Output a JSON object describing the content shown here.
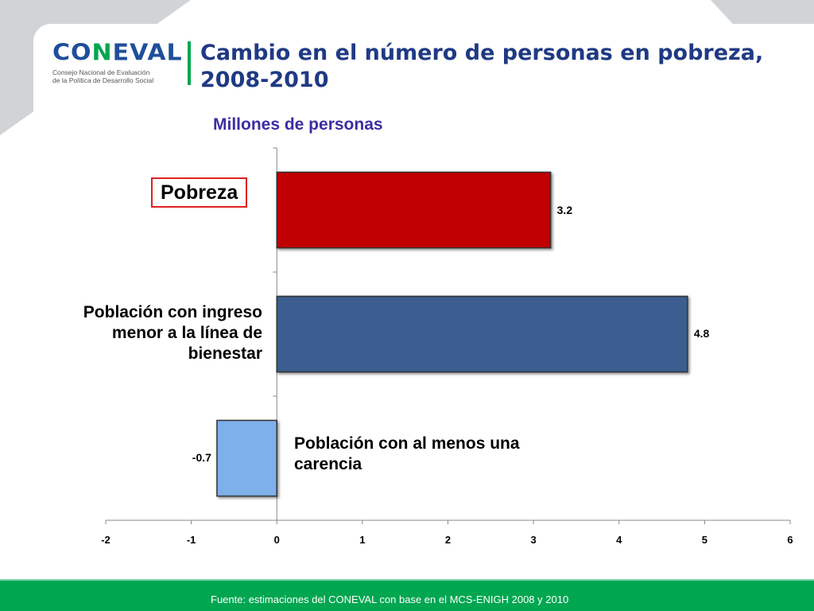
{
  "header": {
    "logo_text": "CONEVAL",
    "logo_subtitle": [
      "Consejo Nacional de Evaluación",
      "de la Política de Desarrollo Social"
    ],
    "title": "Cambio en el número de personas en pobreza, 2008-2010"
  },
  "chart_data": {
    "type": "bar",
    "orientation": "horizontal",
    "title": "Millones de personas",
    "categories": [
      "Pobreza",
      "Población con ingreso menor a la línea de bienestar",
      "Población con al menos una carencia"
    ],
    "values": [
      3.2,
      4.8,
      -0.7
    ],
    "value_labels": [
      "3.2",
      "4.8",
      "-0.7"
    ],
    "colors": [
      "#c00000",
      "#3a5d8f",
      "#7eb0ea"
    ],
    "xlim": [
      -2,
      6
    ],
    "xticks": [
      "-2",
      "-1",
      "0",
      "1",
      "2",
      "3",
      "4",
      "5",
      "6"
    ],
    "grid": false
  },
  "footer": {
    "source": "Fuente: estimaciones del CONEVAL con base en el MCS-ENIGH 2008 y 2010"
  }
}
